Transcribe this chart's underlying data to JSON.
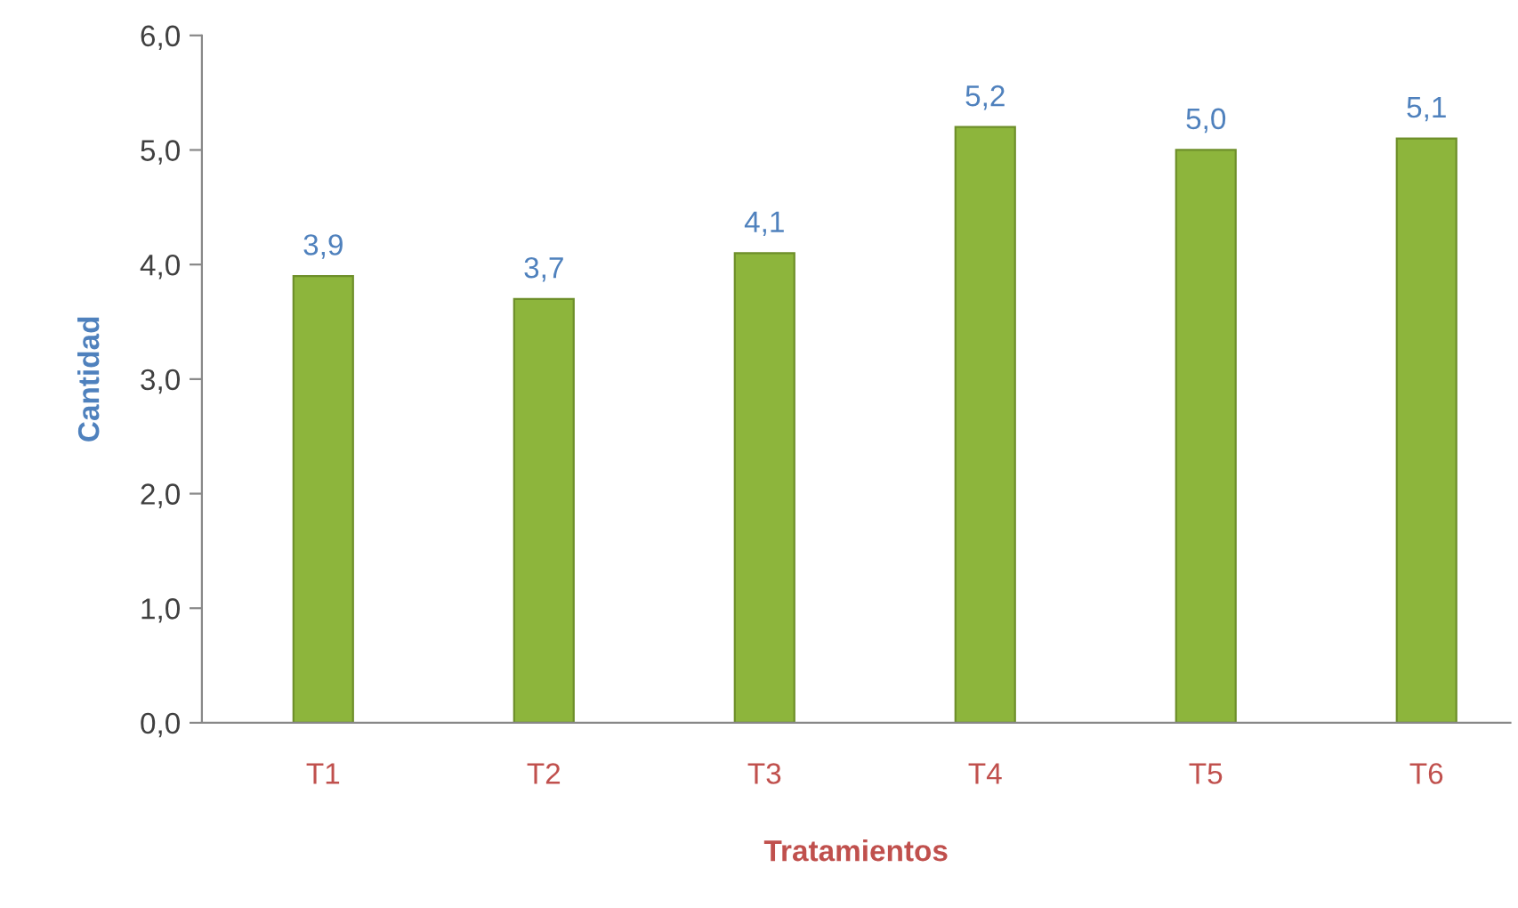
{
  "chart_data": {
    "type": "bar",
    "xlabel": "Tratamientos",
    "ylabel": "Cantidad",
    "categories": [
      "T1",
      "T2",
      "T3",
      "T4",
      "T5",
      "T6"
    ],
    "series": [
      {
        "color": "#8db53c",
        "values": [
          3.9,
          3.7,
          4.1,
          5.2,
          5.0,
          5.1
        ],
        "value_labels": [
          "3,9",
          "3,7",
          "4,1",
          "5,2",
          "5,0",
          "5,1"
        ]
      }
    ],
    "ylim": [
      0,
      6
    ],
    "yticks": [
      {
        "value": 0,
        "label": "0,0"
      },
      {
        "value": 1,
        "label": "1,0"
      },
      {
        "value": 2,
        "label": "2,0"
      },
      {
        "value": 3,
        "label": "3,0"
      },
      {
        "value": 4,
        "label": "4,0"
      },
      {
        "value": 5,
        "label": "5,0"
      },
      {
        "value": 6,
        "label": "6,0"
      }
    ],
    "grid": false,
    "legend": false
  }
}
